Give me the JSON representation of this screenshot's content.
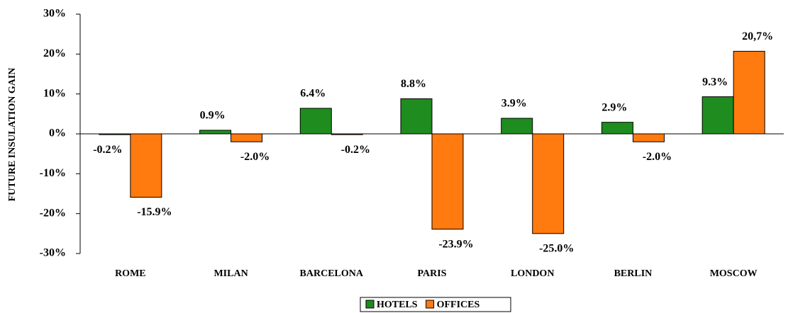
{
  "chart_data": {
    "type": "bar",
    "y_label": "FUTURE INSULATION GAIN",
    "categories": [
      "ROME",
      "MILAN",
      "BARCELONA",
      "PARIS",
      "LONDON",
      "BERLIN",
      "MOSCOW"
    ],
    "series": [
      {
        "name": "HOTELS",
        "color": "#1e8c1e",
        "values": [
          -0.2,
          0.9,
          6.4,
          8.8,
          3.9,
          2.9,
          9.3
        ],
        "value_labels": [
          "-0.2%",
          "0.9%",
          "6.4%",
          "8.8%",
          "3.9%",
          "2.9%",
          "9.3%"
        ]
      },
      {
        "name": "OFFICES",
        "color": "#ff7a0f",
        "values": [
          -15.9,
          -2.0,
          -0.2,
          -23.9,
          -25.0,
          -2.0,
          20.7
        ],
        "value_labels": [
          "-15.9%",
          "-2.0%",
          "-0.2%",
          "-23.9%",
          "-25.0%",
          "-2.0%",
          "20,7%"
        ]
      }
    ],
    "ylim": [
      -30,
      30
    ],
    "yticks": [
      {
        "value": -30,
        "label": "-30%"
      },
      {
        "value": -20,
        "label": "-20%"
      },
      {
        "value": -10,
        "label": "-10%"
      },
      {
        "value": 0,
        "label": "0%"
      },
      {
        "value": 10,
        "label": "10%"
      },
      {
        "value": 20,
        "label": "20%"
      },
      {
        "value": 30,
        "label": "30%"
      }
    ],
    "legend": "bottom"
  }
}
